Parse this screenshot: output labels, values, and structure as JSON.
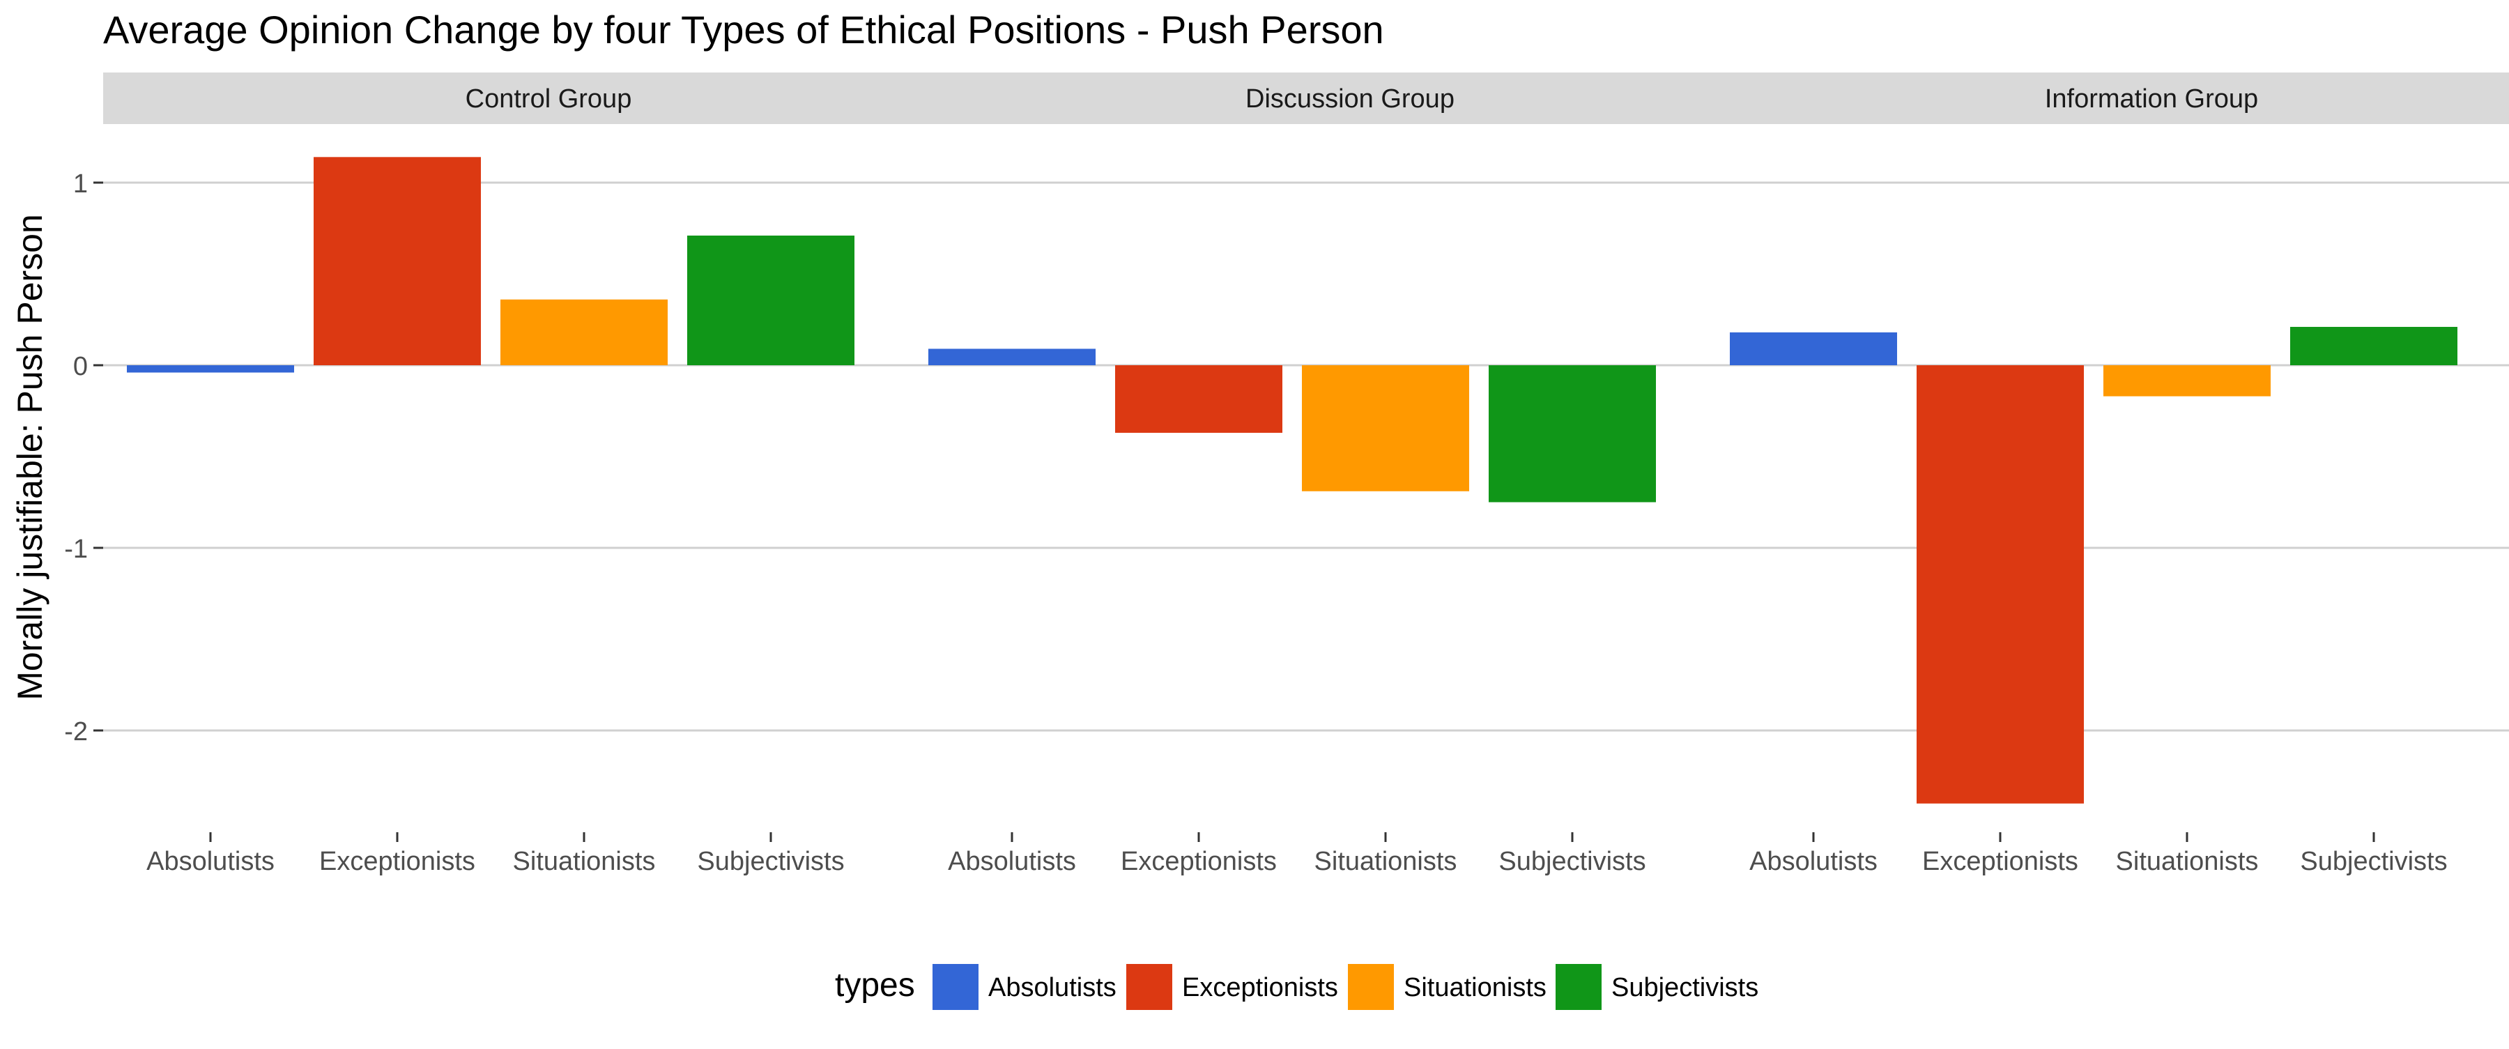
{
  "chart_data": {
    "type": "bar",
    "title": "Average Opinion Change by four Types of Ethical Positions - Push Person",
    "ylabel": "Morally justifiable: Push Person",
    "xlabel": "",
    "categories": [
      "Absolutists",
      "Exceptionists",
      "Situationists",
      "Subjectivists"
    ],
    "ylim": [
      -2.4,
      1.2
    ],
    "yticks": [
      1,
      0,
      -1,
      -2
    ],
    "ytick_labels": [
      "1",
      "0",
      "-1",
      "-2"
    ],
    "grid": true,
    "legend": {
      "title": "types",
      "placement": "bottom",
      "entries": [
        "Absolutists",
        "Exceptionists",
        "Situationists",
        "Subjectivists"
      ]
    },
    "colors": {
      "Absolutists": "#3366d6",
      "Exceptionists": "#dc3912",
      "Situationists": "#ff9900",
      "Subjectivists": "#109618"
    },
    "facets": [
      {
        "name": "Control Group",
        "values": [
          -0.04,
          1.14,
          0.36,
          0.71
        ]
      },
      {
        "name": "Discussion Group",
        "values": [
          0.09,
          -0.37,
          -0.69,
          -0.75
        ]
      },
      {
        "name": "Information Group",
        "values": [
          0.18,
          -2.4,
          -0.17,
          0.21
        ]
      }
    ]
  }
}
